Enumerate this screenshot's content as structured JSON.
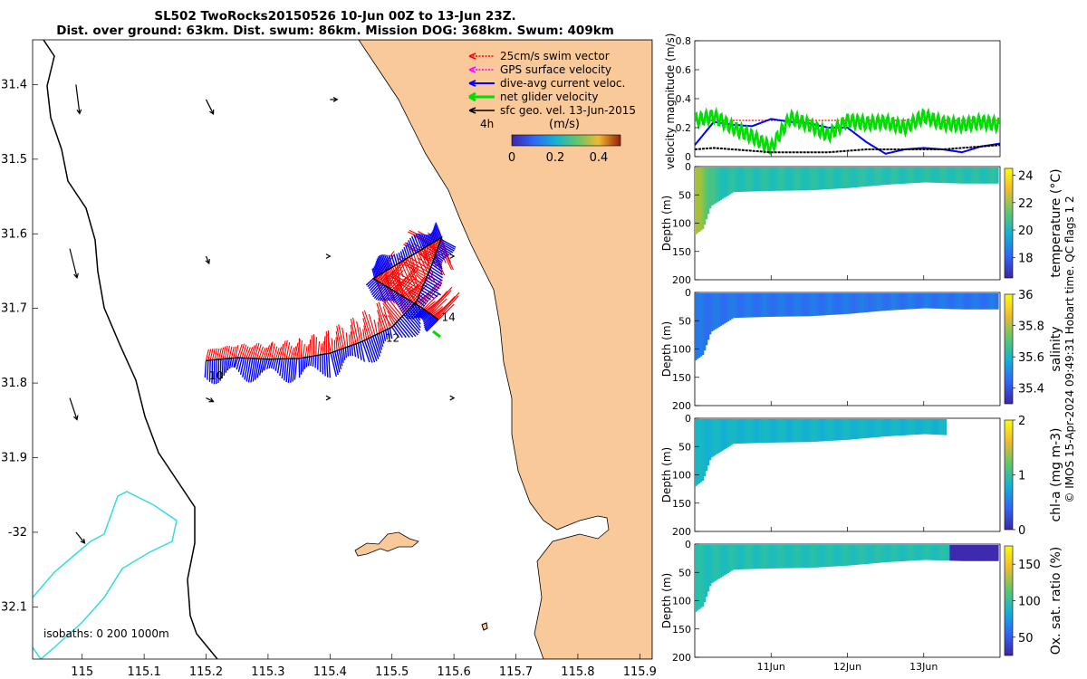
{
  "title": {
    "line1": "SL502 TwoRocks20150526 10-Jun 00Z to 13-Jun 23Z.",
    "line2": "Dist. over ground: 63km. Dist. swum: 86km. Mission DOG: 368km. Swum: 409km"
  },
  "footer_text": "© IMOS 15-Apr-2024 09:49:31 Hobart time. QC flags 1  2",
  "colors": {
    "land": "#f9c99a",
    "swim_vector": "#ff0000",
    "gps_velocity": "#ff00ff",
    "dive_avg_current": "#0000ff",
    "net_glider_velocity": "#00dd00",
    "sfc_geo_velocity": "#000000",
    "isobath_200": "#000000",
    "isobath_1000": "#33dddd"
  },
  "chart_data": [
    {
      "type": "line",
      "panel": "map",
      "xlim": [
        114.92,
        115.92
      ],
      "ylim": [
        -32.17,
        -31.34
      ],
      "xticks": [
        115,
        115.1,
        115.2,
        115.3,
        115.4,
        115.5,
        115.6,
        115.7,
        115.8,
        115.9
      ],
      "xtick_labels": [
        "115",
        "115.1",
        "115.2",
        "115.3",
        "115.4",
        "115.5",
        "115.6",
        "115.7",
        "115.8",
        "115.9"
      ],
      "yticks": [
        -31.4,
        -31.5,
        -31.6,
        -31.7,
        -31.8,
        -31.9,
        -32,
        -32.1
      ],
      "ytick_labels": [
        "31.4",
        "31.5",
        "31.6",
        "31.7",
        "31.8",
        "31.9",
        "-32",
        "32.1"
      ],
      "legend": {
        "position": "top-right",
        "entries": [
          "25cm/s swim vector",
          "GPS surface velocity",
          "dive-avg current veloc.",
          "net glider velocity",
          "sfc geo. vel. 13-Jun-2015"
        ],
        "time_label": "4h"
      },
      "colorbar": {
        "label": "(m/s)",
        "ticks": [
          0,
          0.2,
          0.4
        ],
        "tick_labels": [
          "0",
          "0.2",
          "0.4"
        ],
        "range": [
          0,
          0.5
        ]
      },
      "isobath_text": "isobaths: 0   200  1000m",
      "track": {
        "lon": [
          115.2,
          115.25,
          115.3,
          115.35,
          115.4,
          115.45,
          115.5,
          115.54,
          115.565,
          115.58,
          115.55,
          115.5,
          115.47,
          115.51,
          115.55,
          115.575
        ],
        "lat": [
          -31.77,
          -31.766,
          -31.768,
          -31.767,
          -31.76,
          -31.745,
          -31.725,
          -31.69,
          -31.64,
          -31.605,
          -31.62,
          -31.645,
          -31.66,
          -31.68,
          -31.7,
          -31.715
        ]
      },
      "track_labels": [
        {
          "text": "10",
          "lon": 115.205,
          "lat": -31.79
        },
        {
          "text": "12",
          "lon": 115.49,
          "lat": -31.74
        },
        {
          "text": "14",
          "lon": 115.58,
          "lat": -31.712
        }
      ],
      "sfc_vectors": [
        {
          "lon": 115.2,
          "lat": -31.42,
          "u": 0.01,
          "v": -0.02
        },
        {
          "lon": 115.4,
          "lat": -31.42,
          "u": 0.01,
          "v": 0
        },
        {
          "lon": 115.2,
          "lat": -31.63,
          "u": 0.004,
          "v": -0.01
        },
        {
          "lon": 115.4,
          "lat": -31.63,
          "u": 0,
          "v": 0
        },
        {
          "lon": 115.6,
          "lat": -31.63,
          "u": 0,
          "v": 0
        },
        {
          "lon": 115.2,
          "lat": -31.82,
          "u": 0.01,
          "v": -0.005
        },
        {
          "lon": 115.4,
          "lat": -31.82,
          "u": 0,
          "v": 0
        },
        {
          "lon": 115.6,
          "lat": -31.82,
          "u": 0,
          "v": 0
        },
        {
          "lon": 114.99,
          "lat": -31.4,
          "u": 0.005,
          "v": -0.04
        },
        {
          "lon": 114.98,
          "lat": -31.62,
          "u": 0.01,
          "v": -0.04
        },
        {
          "lon": 114.98,
          "lat": -31.82,
          "u": 0.01,
          "v": -0.03
        },
        {
          "lon": 114.99,
          "lat": -32,
          "u": 0.012,
          "v": -0.015
        }
      ]
    },
    {
      "type": "line",
      "panel": "velocity",
      "ylabel": "velocity magnitude (m/s)",
      "ylim": [
        0,
        0.8
      ],
      "yticks": [
        0,
        0.2,
        0.4,
        0.6,
        0.8
      ],
      "ytick_labels": [
        "0",
        "0.2",
        "0.4",
        "0.6",
        "0.8"
      ],
      "x": [
        "10.0",
        "10.25",
        "10.5",
        "10.75",
        "11.0",
        "11.25",
        "11.5",
        "11.75",
        "12.0",
        "12.25",
        "12.5",
        "12.75",
        "13.0",
        "13.25",
        "13.5",
        "13.75",
        "14.0"
      ],
      "series": [
        {
          "name": "25cm/s swim vector",
          "color": "#ff0000",
          "values": [
            0.25,
            0.25,
            0.25,
            0.25,
            0.25,
            0.25,
            0.25,
            0.25,
            0.25,
            0.25,
            0.25,
            0.25,
            0.25,
            0.25,
            0.25,
            0.25,
            0.25
          ]
        },
        {
          "name": "dive-avg current veloc.",
          "color": "#0000ff",
          "values": [
            0.08,
            0.24,
            0.22,
            0.21,
            0.26,
            0.24,
            0.23,
            0.2,
            0.2,
            0.1,
            0.02,
            0.05,
            0.06,
            0.05,
            0.03,
            0.07,
            0.09
          ]
        },
        {
          "name": "net glider velocity",
          "color": "#00dd00",
          "values": [
            0.25,
            0.28,
            0.2,
            0.14,
            0.06,
            0.27,
            0.22,
            0.15,
            0.25,
            0.23,
            0.24,
            0.2,
            0.28,
            0.23,
            0.22,
            0.24,
            0.22
          ]
        },
        {
          "name": "sfc geo. vel. 13-Jun-2015",
          "color": "#000000",
          "values": [
            0.05,
            0.06,
            0.05,
            0.04,
            0.03,
            0.03,
            0.03,
            0.03,
            0.04,
            0.05,
            0.05,
            0.05,
            0.05,
            0.05,
            0.06,
            0.07,
            0.08
          ]
        }
      ]
    },
    {
      "type": "heatmap",
      "panel": "temperature",
      "ylabel": "Depth (m)",
      "ylim": [
        200,
        0
      ],
      "yticks": [
        0,
        50,
        100,
        150,
        200
      ],
      "ytick_labels": [
        "0",
        "50",
        "100",
        "150",
        "200"
      ],
      "colorbar_label": "temperature (°C)",
      "colorbar_ticks": [
        18,
        20,
        22,
        24
      ],
      "colorbar_range": [
        16.5,
        24.5
      ],
      "colormap": "parula",
      "x_days": [
        10.0,
        10.1,
        10.2,
        10.5,
        11.0,
        11.5,
        12.0,
        12.5,
        13.0,
        13.5,
        13.98
      ],
      "max_depth": [
        120,
        110,
        70,
        45,
        43,
        42,
        38,
        32,
        28,
        30,
        30
      ],
      "mean_value": 20.6,
      "near_shore_value": 22.5
    },
    {
      "type": "heatmap",
      "panel": "salinity",
      "ylabel": "Depth (m)",
      "ylim": [
        200,
        0
      ],
      "yticks": [
        0,
        50,
        100,
        150,
        200
      ],
      "ytick_labels": [
        "0",
        "50",
        "100",
        "150",
        "200"
      ],
      "colorbar_label": "salinity",
      "colorbar_ticks": [
        35.4,
        35.6,
        35.8,
        36
      ],
      "colorbar_range": [
        35.3,
        36
      ],
      "colormap": "parula",
      "x_days": [
        10.0,
        10.1,
        10.2,
        10.5,
        11.0,
        11.5,
        12.0,
        12.5,
        13.0,
        13.5,
        13.98
      ],
      "max_depth": [
        120,
        110,
        70,
        45,
        43,
        42,
        38,
        32,
        28,
        30,
        30
      ],
      "mean_value": 35.47
    },
    {
      "type": "heatmap",
      "panel": "chl-a",
      "ylabel": "Depth (m)",
      "ylim": [
        200,
        0
      ],
      "yticks": [
        0,
        50,
        100,
        150,
        200
      ],
      "ytick_labels": [
        "0",
        "50",
        "100",
        "150",
        "200"
      ],
      "colorbar_label": "chl-a (mg m-3)",
      "colorbar_ticks": [
        0,
        1,
        2
      ],
      "colorbar_range": [
        0,
        2
      ],
      "colormap": "parula",
      "x_days": [
        10.0,
        10.1,
        10.2,
        10.5,
        11.0,
        11.5,
        12.0,
        12.5,
        13.0,
        13.3
      ],
      "max_depth": [
        120,
        110,
        70,
        45,
        43,
        42,
        38,
        32,
        28,
        30
      ],
      "mean_value": 0.85
    },
    {
      "type": "heatmap",
      "panel": "oxygen",
      "ylabel": "Depth (m)",
      "ylim": [
        200,
        0
      ],
      "yticks": [
        0,
        50,
        100,
        150,
        200
      ],
      "ytick_labels": [
        "0",
        "50",
        "100",
        "150",
        "200"
      ],
      "xticks": [
        11,
        12,
        13
      ],
      "xtick_labels": [
        "11Jun",
        "12Jun",
        "13Jun"
      ],
      "xlim": [
        10,
        14
      ],
      "colorbar_label": "Ox. sat. ratio (%)",
      "colorbar_ticks": [
        50,
        100,
        150
      ],
      "colorbar_range": [
        25,
        175
      ],
      "colormap": "parula",
      "x_days": [
        10.0,
        10.1,
        10.2,
        10.5,
        11.0,
        11.5,
        12.0,
        12.5,
        13.0,
        13.5,
        13.98
      ],
      "max_depth": [
        120,
        110,
        70,
        45,
        43,
        42,
        38,
        32,
        28,
        30,
        30
      ],
      "mean_value": 100,
      "tail_start": 13.33,
      "tail_value": 27
    }
  ]
}
